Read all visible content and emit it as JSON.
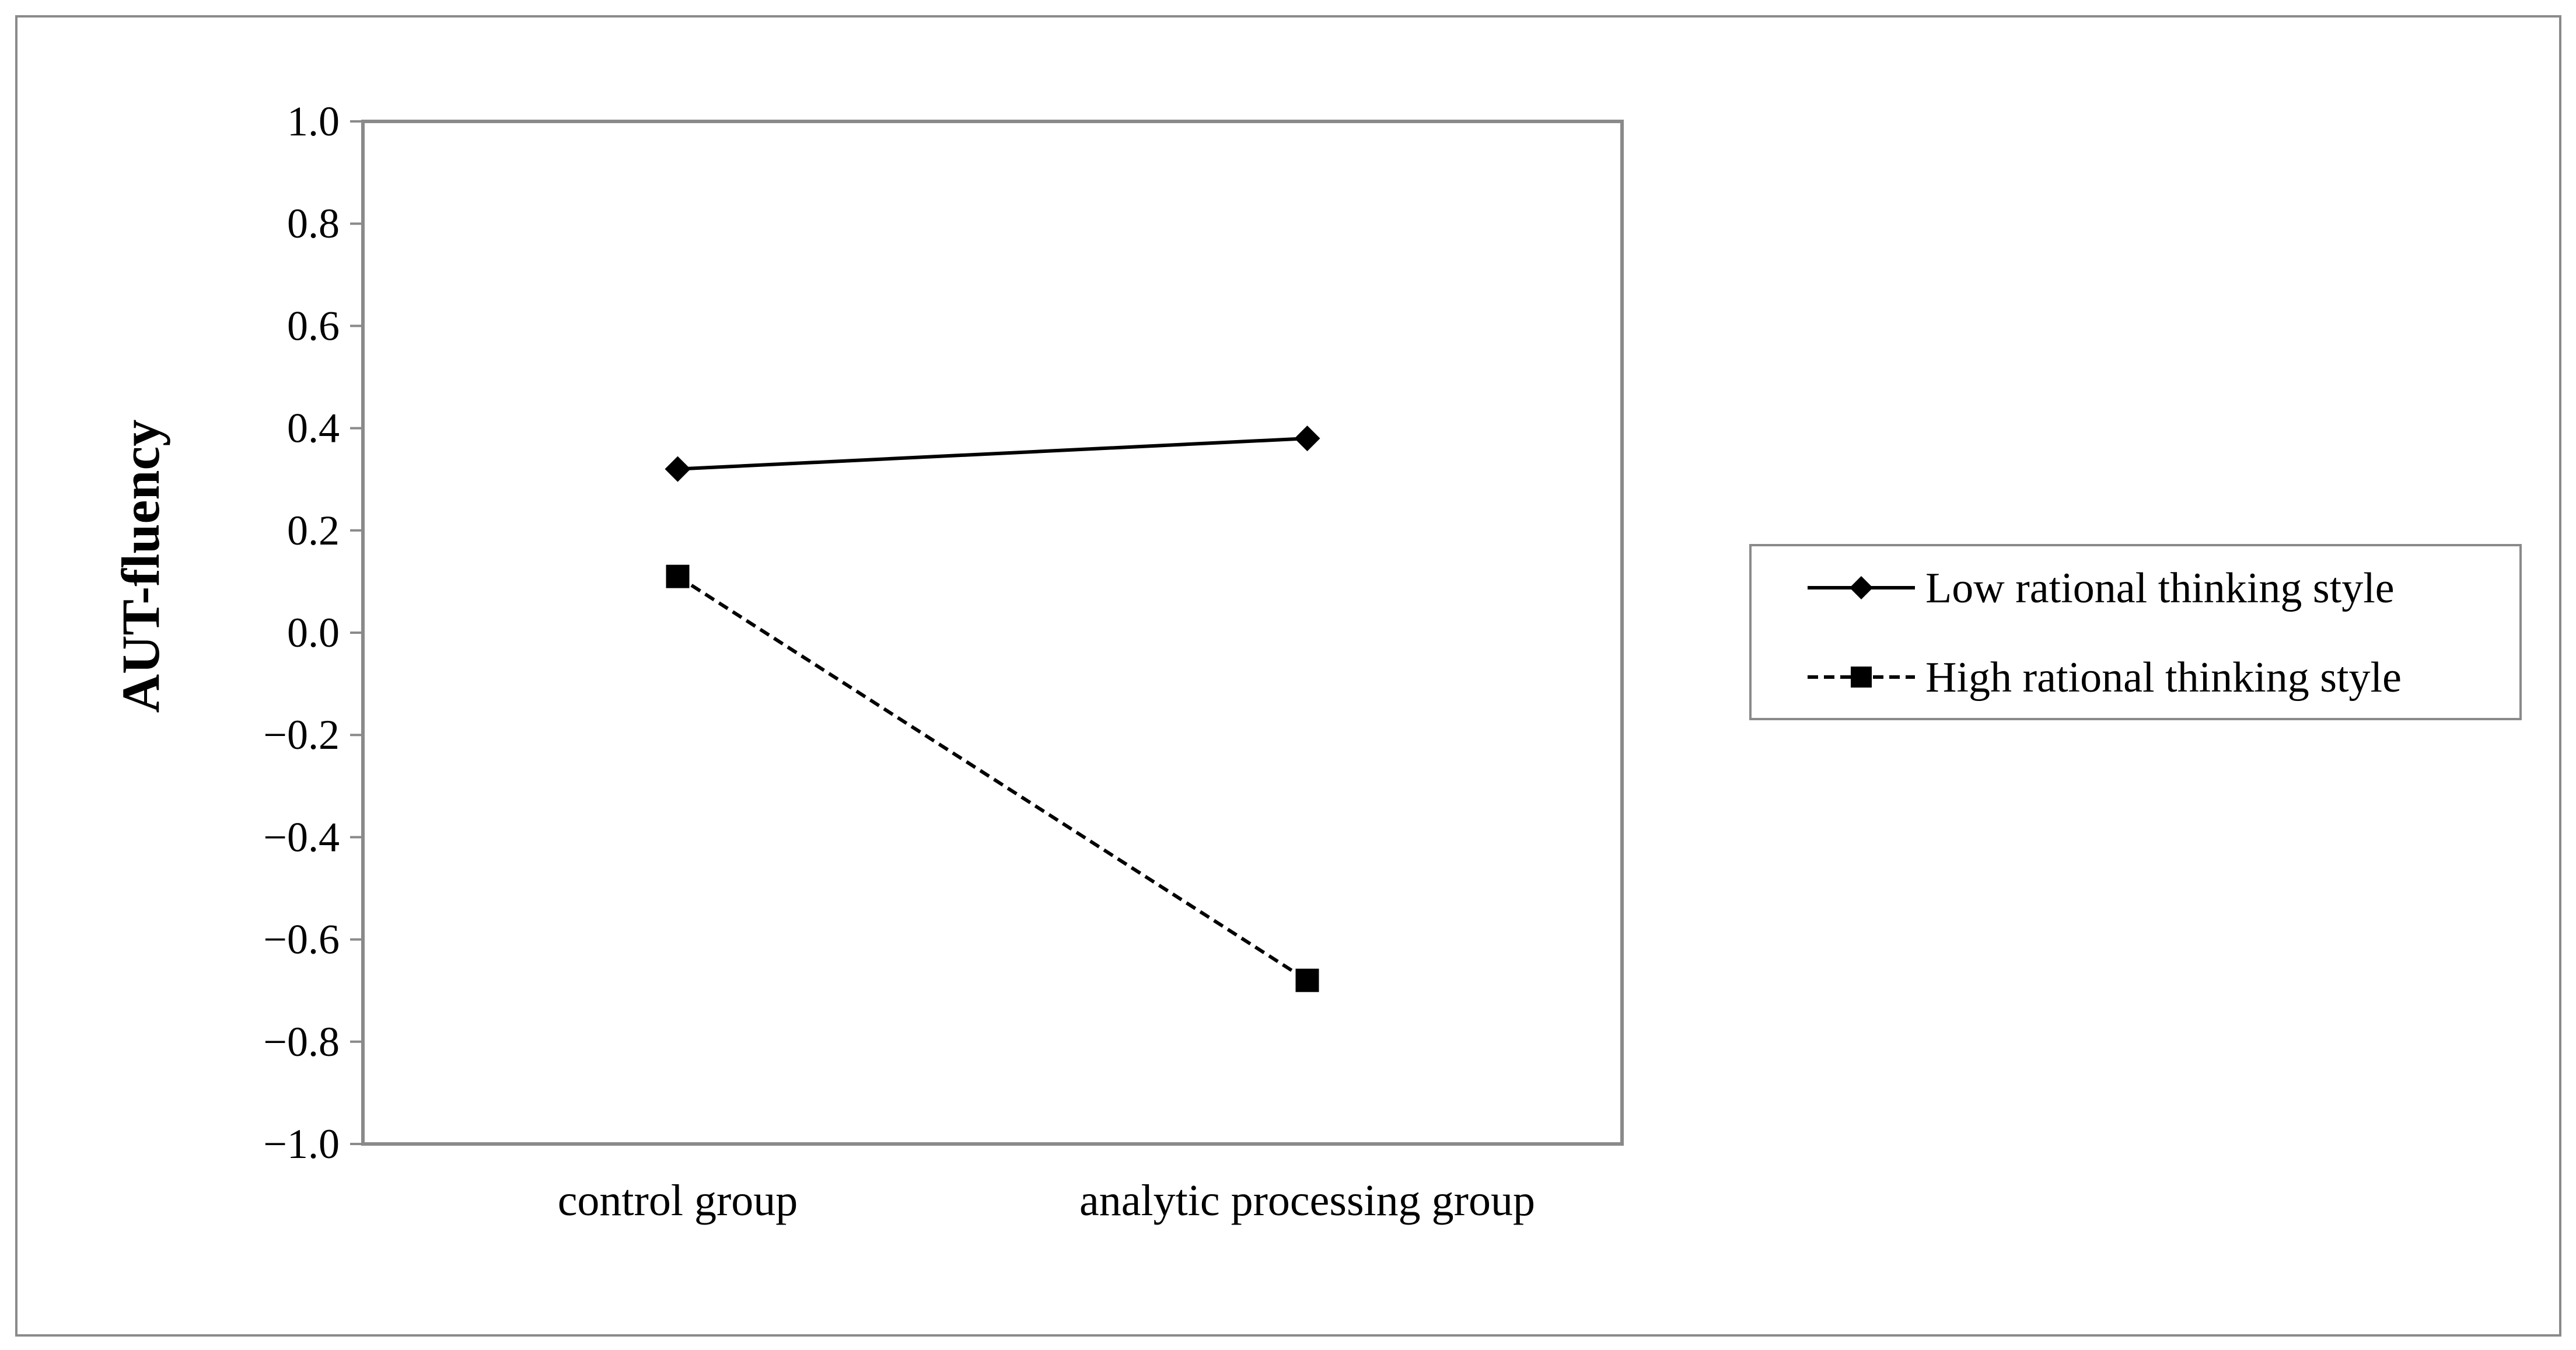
{
  "chart_data": {
    "type": "line",
    "title": "",
    "xlabel": "",
    "ylabel": "AUT-fluency",
    "categories": [
      "control group",
      "analytic processing group"
    ],
    "ylim": [
      -1.0,
      1.0
    ],
    "ytick_step": 0.2,
    "yticks": [
      "1.0",
      "0.8",
      "0.6",
      "0.4",
      "0.2",
      "0.0",
      "−0.2",
      "−0.4",
      "−0.6",
      "−0.8",
      "−1.0"
    ],
    "grid": false,
    "legend_position": "right",
    "series": [
      {
        "name": "Low rational thinking style",
        "values": [
          0.32,
          0.38
        ],
        "line_style": "solid",
        "marker": "diamond",
        "color": "#000000"
      },
      {
        "name": "High rational thinking style",
        "values": [
          0.11,
          -0.68
        ],
        "line_style": "dashed",
        "marker": "square",
        "color": "#000000"
      }
    ]
  }
}
